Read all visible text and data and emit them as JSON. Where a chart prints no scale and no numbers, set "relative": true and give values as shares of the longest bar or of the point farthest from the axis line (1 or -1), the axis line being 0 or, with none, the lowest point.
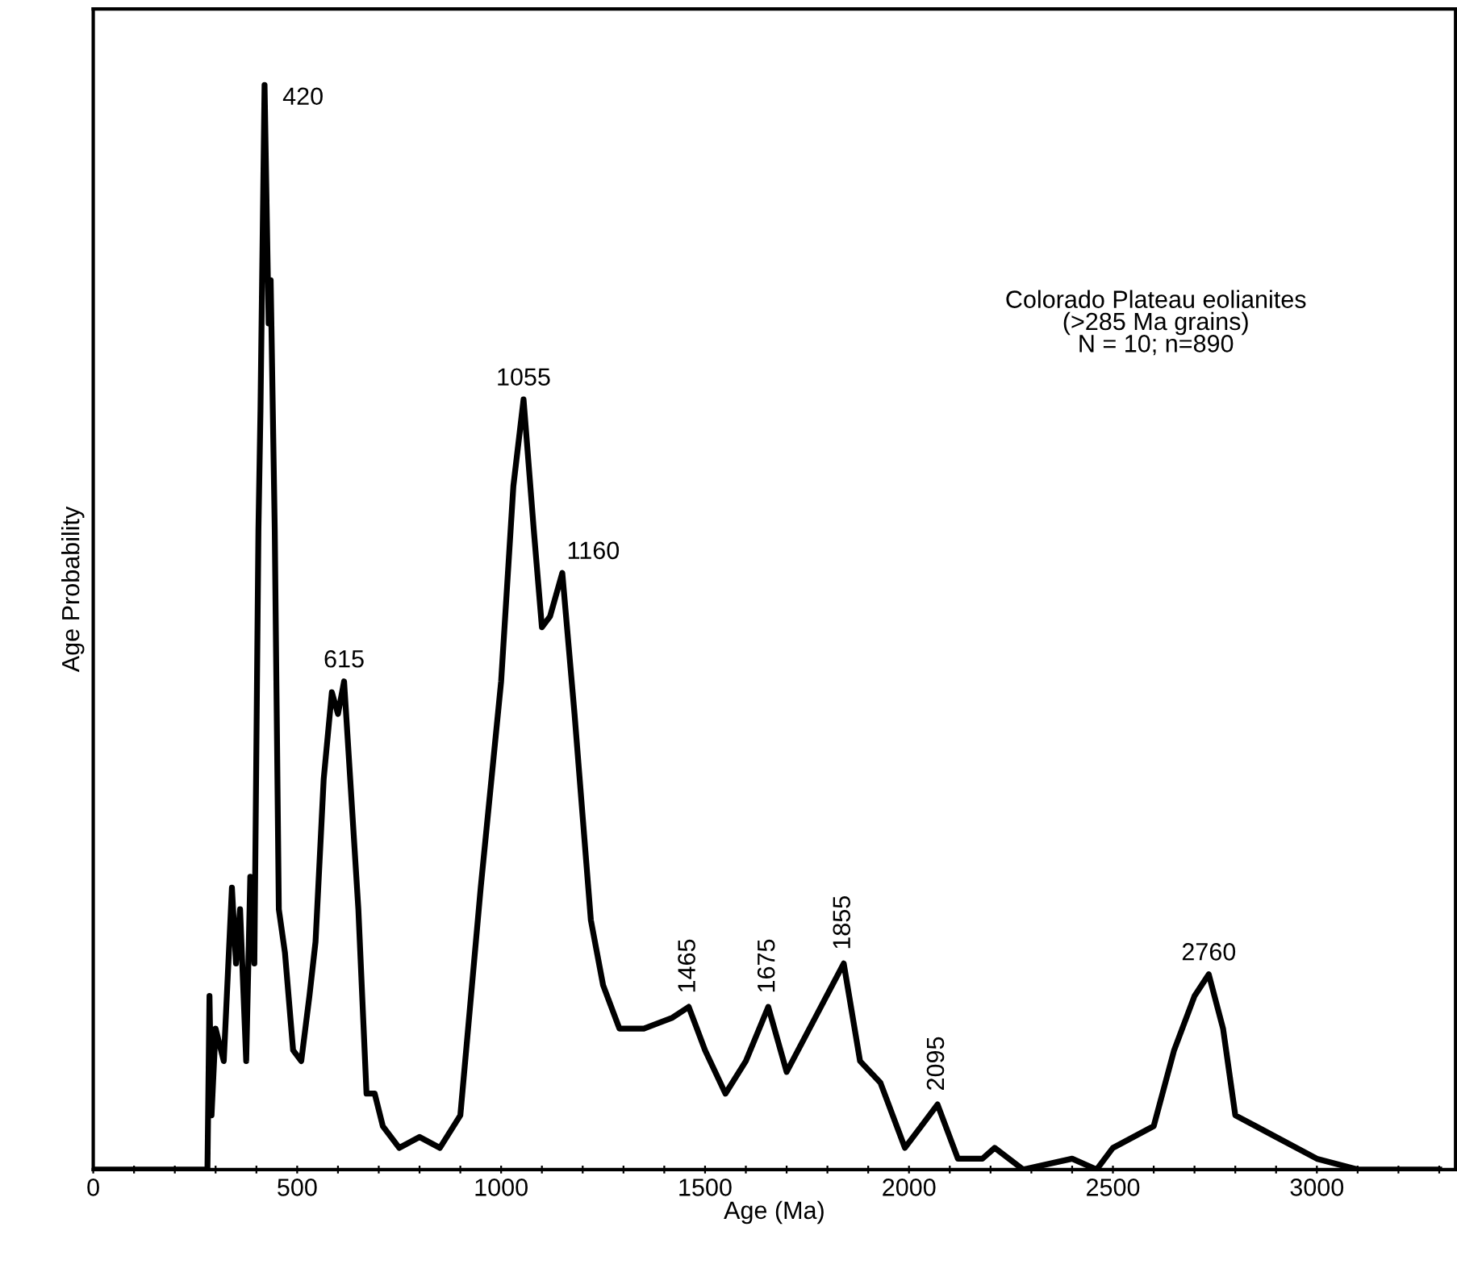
{
  "chart_data": {
    "type": "line",
    "relative": true,
    "xlabel": "Age (Ma)",
    "ylabel": "Age Probability",
    "color": "#000000",
    "x": [
      0,
      280,
      285,
      290,
      300,
      320,
      340,
      350,
      360,
      375,
      385,
      395,
      405,
      410,
      420,
      430,
      435,
      445,
      455,
      470,
      490,
      510,
      530,
      545,
      565,
      585,
      600,
      615,
      630,
      650,
      670,
      690,
      710,
      750,
      800,
      850,
      900,
      950,
      1000,
      1030,
      1055,
      1080,
      1100,
      1120,
      1150,
      1180,
      1220,
      1250,
      1290,
      1350,
      1420,
      1460,
      1500,
      1550,
      1600,
      1655,
      1700,
      1770,
      1840,
      1880,
      1930,
      1990,
      2030,
      2070,
      2120,
      2180,
      2210,
      2280,
      2400,
      2460,
      2500,
      2600,
      2650,
      2700,
      2735,
      2770,
      2800,
      2850,
      2900,
      3000,
      3100,
      3300
    ],
    "values": [
      0,
      0,
      0.16,
      0.05,
      0.13,
      0.1,
      0.26,
      0.19,
      0.24,
      0.1,
      0.27,
      0.19,
      0.59,
      0.7,
      1,
      0.78,
      0.82,
      0.59,
      0.24,
      0.2,
      0.11,
      0.1,
      0.16,
      0.21,
      0.36,
      0.44,
      0.42,
      0.45,
      0.36,
      0.24,
      0.07,
      0.07,
      0.04,
      0.02,
      0.03,
      0.02,
      0.05,
      0.26,
      0.45,
      0.63,
      0.71,
      0.59,
      0.5,
      0.51,
      0.55,
      0.42,
      0.23,
      0.17,
      0.13,
      0.13,
      0.14,
      0.15,
      0.11,
      0.07,
      0.1,
      0.15,
      0.09,
      0.14,
      0.19,
      0.1,
      0.08,
      0.02,
      0.04,
      0.06,
      0.01,
      0.01,
      0.02,
      0,
      0.01,
      0,
      0.02,
      0.04,
      0.11,
      0.16,
      0.18,
      0.13,
      0.05,
      0.04,
      0.03,
      0.01,
      0,
      0
    ],
    "xlim": [
      0,
      3340
    ],
    "xticks": [
      0,
      {
        "value": 100,
        "label": null
      },
      {
        "value": 200,
        "label": null
      },
      {
        "value": 300,
        "label": null
      },
      {
        "value": 400,
        "label": null
      },
      500,
      {
        "value": 600,
        "label": null
      },
      {
        "value": 700,
        "label": null
      },
      {
        "value": 800,
        "label": null
      },
      {
        "value": 900,
        "label": null
      },
      1000,
      {
        "value": 1100,
        "label": null
      },
      {
        "value": 1200,
        "label": null
      },
      {
        "value": 1300,
        "label": null
      },
      {
        "value": 1400,
        "label": null
      },
      1500,
      {
        "value": 1600,
        "label": null
      },
      {
        "value": 1700,
        "label": null
      },
      {
        "value": 1800,
        "label": null
      },
      {
        "value": 1900,
        "label": null
      },
      2000,
      {
        "value": 2100,
        "label": null
      },
      {
        "value": 2200,
        "label": null
      },
      {
        "value": 2300,
        "label": null
      },
      {
        "value": 2400,
        "label": null
      },
      2500,
      {
        "value": 2600,
        "label": null
      },
      {
        "value": 2700,
        "label": null
      },
      {
        "value": 2800,
        "label": null
      },
      {
        "value": 2900,
        "label": null
      },
      3000,
      {
        "value": 3100,
        "label": null
      },
      {
        "value": 3200,
        "label": null
      },
      {
        "value": 3300,
        "label": null
      }
    ],
    "annotations": [
      {
        "text": "420",
        "x": 420,
        "y": 1
      },
      {
        "text": "615",
        "x": 615,
        "y": 0.45
      },
      {
        "text": "1055",
        "x": 1055,
        "y": 0.71
      },
      {
        "text": "1160",
        "x": 1150,
        "y": 0.55
      },
      {
        "text": "1465",
        "x": 1460,
        "y": 0.15
      },
      {
        "text": "1675",
        "x": 1655,
        "y": 0.15
      },
      {
        "text": "1855",
        "x": 1840,
        "y": 0.19
      },
      {
        "text": "2095",
        "x": 2070,
        "y": 0.06
      },
      {
        "text": "2760",
        "x": 2735,
        "y": 0.18
      },
      "Colorado Plateau eolianites\n(>285 Ma grains)\nN = 10; n=890"
    ],
    "grid": false,
    "marker": "none",
    "line_style": "solid"
  }
}
